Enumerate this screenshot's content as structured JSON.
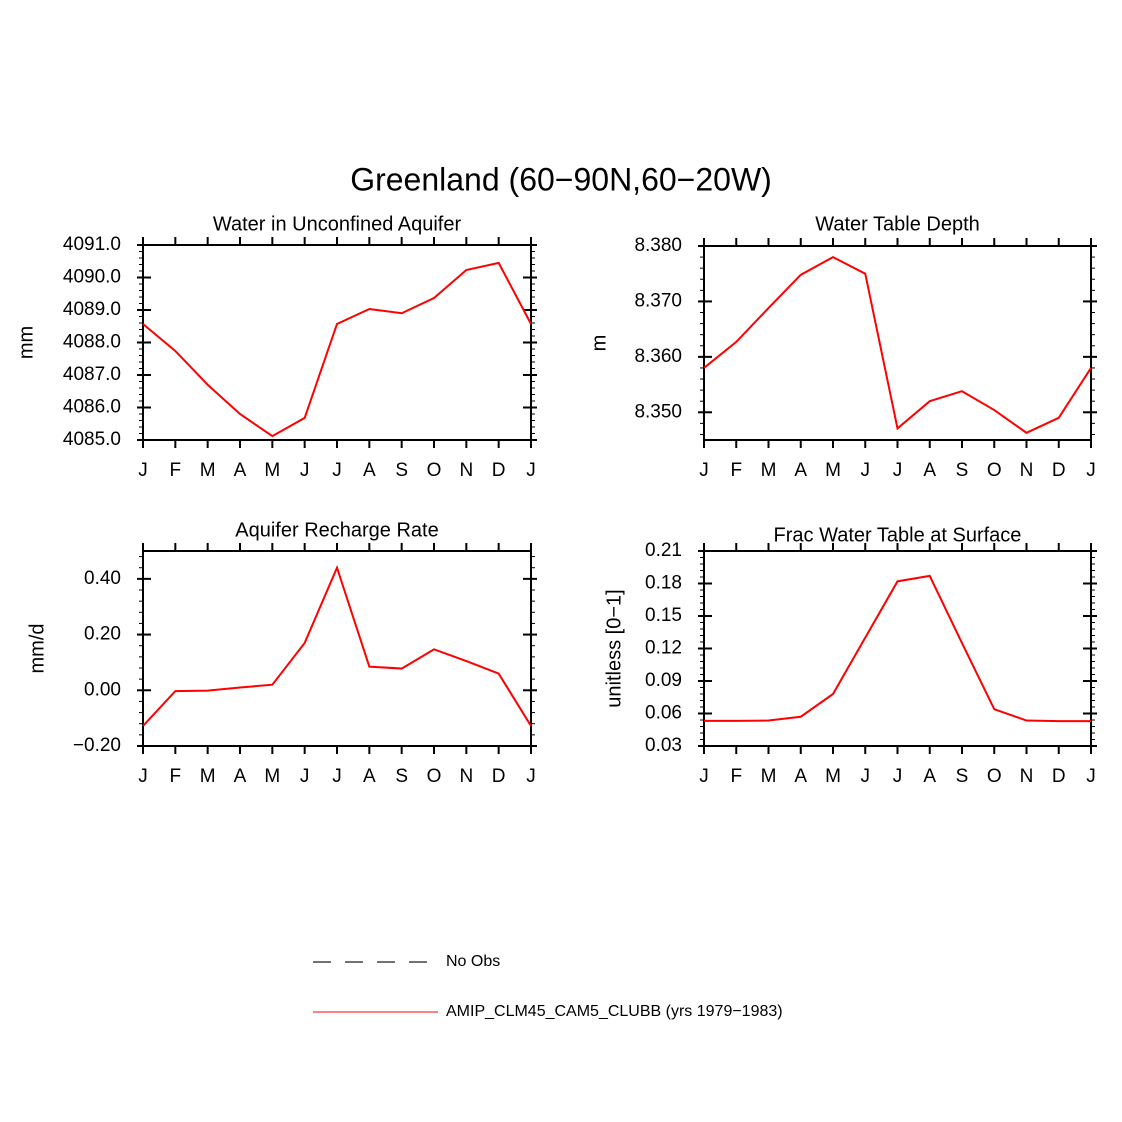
{
  "title": "Greenland (60−90N,60−20W)",
  "legend": [
    {
      "name": "No Obs",
      "color": "#444444",
      "dash": true
    },
    {
      "name": "AMIP_CLM45_CAM5_CLUBB (yrs 1979−1983)",
      "color": "#ff0000",
      "dash": false
    }
  ],
  "chart_data": [
    {
      "type": "line",
      "title": "Water in Unconfined Aquifer",
      "y_label": "mm",
      "categories": [
        "J",
        "F",
        "M",
        "A",
        "M",
        "J",
        "J",
        "A",
        "S",
        "O",
        "N",
        "D",
        "J"
      ],
      "series": [
        {
          "color": "#ff0000",
          "values": [
            4088.57,
            4087.74,
            4086.7,
            4085.8,
            4085.12,
            4085.68,
            4088.57,
            4089.03,
            4088.9,
            4089.37,
            4090.23,
            4090.45,
            4088.57
          ]
        }
      ],
      "ylim": [
        4085,
        4091
      ],
      "yticks": [
        {
          "value": 4085,
          "label": "4085.0"
        },
        {
          "value": 4086,
          "label": "4086.0"
        },
        {
          "value": 4087,
          "label": "4087.0"
        },
        {
          "value": 4088,
          "label": "4088.0"
        },
        {
          "value": 4089,
          "label": "4089.0"
        },
        {
          "value": 4090,
          "label": "4090.0"
        },
        {
          "value": 4091,
          "label": "4091.0"
        }
      ]
    },
    {
      "type": "line",
      "title": "Water Table Depth",
      "y_label": "m",
      "categories": [
        "J",
        "F",
        "M",
        "A",
        "M",
        "J",
        "J",
        "A",
        "S",
        "O",
        "N",
        "D",
        "J"
      ],
      "series": [
        {
          "color": "#ff0000",
          "values": [
            8.358,
            8.3627,
            8.3688,
            8.3748,
            8.378,
            8.375,
            8.3471,
            8.352,
            8.3538,
            8.3504,
            8.3463,
            8.349,
            8.358
          ]
        }
      ],
      "ylim": [
        8.345,
        8.38
      ],
      "yticks": [
        {
          "value": 8.35,
          "label": "8.350"
        },
        {
          "value": 8.36,
          "label": "8.360"
        },
        {
          "value": 8.37,
          "label": "8.370"
        },
        {
          "value": 8.38,
          "label": "8.380"
        }
      ]
    },
    {
      "type": "line",
      "title": "Aquifer Recharge Rate",
      "y_label": "mm/d",
      "categories": [
        "J",
        "F",
        "M",
        "A",
        "M",
        "J",
        "J",
        "A",
        "S",
        "O",
        "N",
        "D",
        "J"
      ],
      "series": [
        {
          "color": "#ff0000",
          "values": [
            -0.128,
            -0.003,
            -0.001,
            0.01,
            0.02,
            0.17,
            0.44,
            0.085,
            0.078,
            0.147,
            0.105,
            0.06,
            -0.128
          ]
        }
      ],
      "ylim": [
        -0.2,
        0.5
      ],
      "yticks": [
        {
          "value": -0.2,
          "label": "−0.20"
        },
        {
          "value": 0,
          "label": "0.00"
        },
        {
          "value": 0.2,
          "label": "0.20"
        },
        {
          "value": 0.4,
          "label": "0.40"
        }
      ]
    },
    {
      "type": "line",
      "title": "Frac Water Table at Surface",
      "y_label": "unitless [0−1]",
      "categories": [
        "J",
        "F",
        "M",
        "A",
        "M",
        "J",
        "J",
        "A",
        "S",
        "O",
        "N",
        "D",
        "J"
      ],
      "series": [
        {
          "color": "#ff0000",
          "values": [
            0.0532,
            0.0532,
            0.0535,
            0.057,
            0.078,
            0.13,
            0.182,
            0.187,
            0.125,
            0.064,
            0.0535,
            0.053,
            0.053
          ]
        }
      ],
      "ylim": [
        0.03,
        0.21
      ],
      "yticks": [
        0.03,
        0.06,
        0.09,
        0.12,
        0.15,
        0.18,
        0.21
      ]
    }
  ]
}
